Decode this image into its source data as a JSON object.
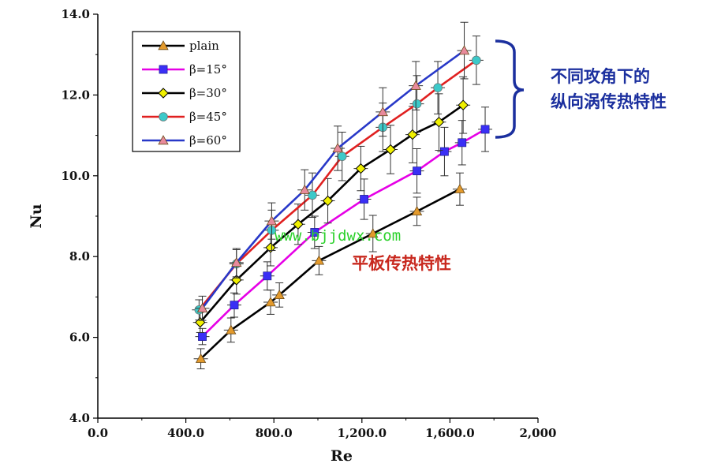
{
  "chart_data": {
    "type": "line",
    "xlabel": "Re",
    "ylabel": "Nu",
    "xlim": [
      0,
      2000
    ],
    "ylim": [
      4,
      14
    ],
    "xticks": [
      0,
      400,
      800,
      1200,
      1600,
      2000
    ],
    "xtick_labels": [
      "0.0",
      "400.0",
      "800.0",
      "1,200.0",
      "1,600.0",
      "2,000"
    ],
    "yticks": [
      4,
      6,
      8,
      10,
      12,
      14
    ],
    "ytick_labels": [
      "4.0",
      "6.0",
      "8.0",
      "10.0",
      "12.0",
      "14.0"
    ],
    "legend_position": "top-left",
    "series": [
      {
        "name": "plain",
        "line_color": "#000000",
        "marker": "triangle",
        "marker_color": "#e39a2c",
        "x": [
          468,
          605,
          785,
          825,
          1005,
          1250,
          1450,
          1645
        ],
        "y": [
          5.47,
          6.18,
          6.87,
          7.05,
          7.9,
          8.57,
          9.12,
          9.67
        ],
        "err": [
          0.25,
          0.3,
          0.3,
          0.3,
          0.35,
          0.45,
          0.35,
          0.4
        ]
      },
      {
        "name": "β=15°",
        "line_color": "#e600e6",
        "marker": "square",
        "marker_color": "#3a2ff5",
        "x": [
          475,
          620,
          770,
          985,
          1210,
          1450,
          1575,
          1655,
          1760
        ],
        "y": [
          6.02,
          6.8,
          7.52,
          8.6,
          9.42,
          10.12,
          10.6,
          10.82,
          11.15
        ],
        "err": [
          0.2,
          0.3,
          0.35,
          0.4,
          0.5,
          0.55,
          0.6,
          0.55,
          0.55
        ]
      },
      {
        "name": "β=30°",
        "line_color": "#000000",
        "marker": "diamond",
        "marker_color": "#f0f000",
        "x": [
          465,
          630,
          785,
          910,
          1045,
          1195,
          1330,
          1430,
          1550,
          1660
        ],
        "y": [
          6.37,
          7.42,
          8.22,
          8.8,
          9.38,
          10.18,
          10.65,
          11.02,
          11.33,
          11.75
        ],
        "err": [
          0.25,
          0.35,
          0.45,
          0.5,
          0.55,
          0.55,
          0.6,
          0.7,
          0.7,
          0.7
        ]
      },
      {
        "name": "β=45°",
        "line_color": "#e02020",
        "marker": "circle",
        "marker_color": "#3cc9c9",
        "x": [
          460,
          630,
          790,
          975,
          1110,
          1295,
          1450,
          1545,
          1720
        ],
        "y": [
          6.68,
          7.82,
          8.65,
          9.52,
          10.48,
          11.2,
          11.78,
          12.18,
          12.86
        ],
        "err": [
          0.25,
          0.35,
          0.5,
          0.55,
          0.6,
          0.6,
          0.7,
          0.65,
          0.6
        ]
      },
      {
        "name": "β=60°",
        "line_color": "#2838c8",
        "marker": "triangle",
        "marker_color": "#e88a9c",
        "x": [
          475,
          630,
          790,
          940,
          1090,
          1295,
          1445,
          1665
        ],
        "y": [
          6.72,
          7.85,
          8.88,
          9.65,
          10.68,
          11.58,
          12.23,
          13.1
        ],
        "err": [
          0.3,
          0.35,
          0.45,
          0.5,
          0.55,
          0.6,
          0.6,
          0.7
        ]
      }
    ]
  },
  "annotations": {
    "bracket_line1": "不同攻角下的",
    "bracket_line2": "纵向涡传热特性",
    "plain_label": "平板传热特性",
    "watermark": "www.bjjdwx.com",
    "bracket_color": "#1b2f9e"
  }
}
